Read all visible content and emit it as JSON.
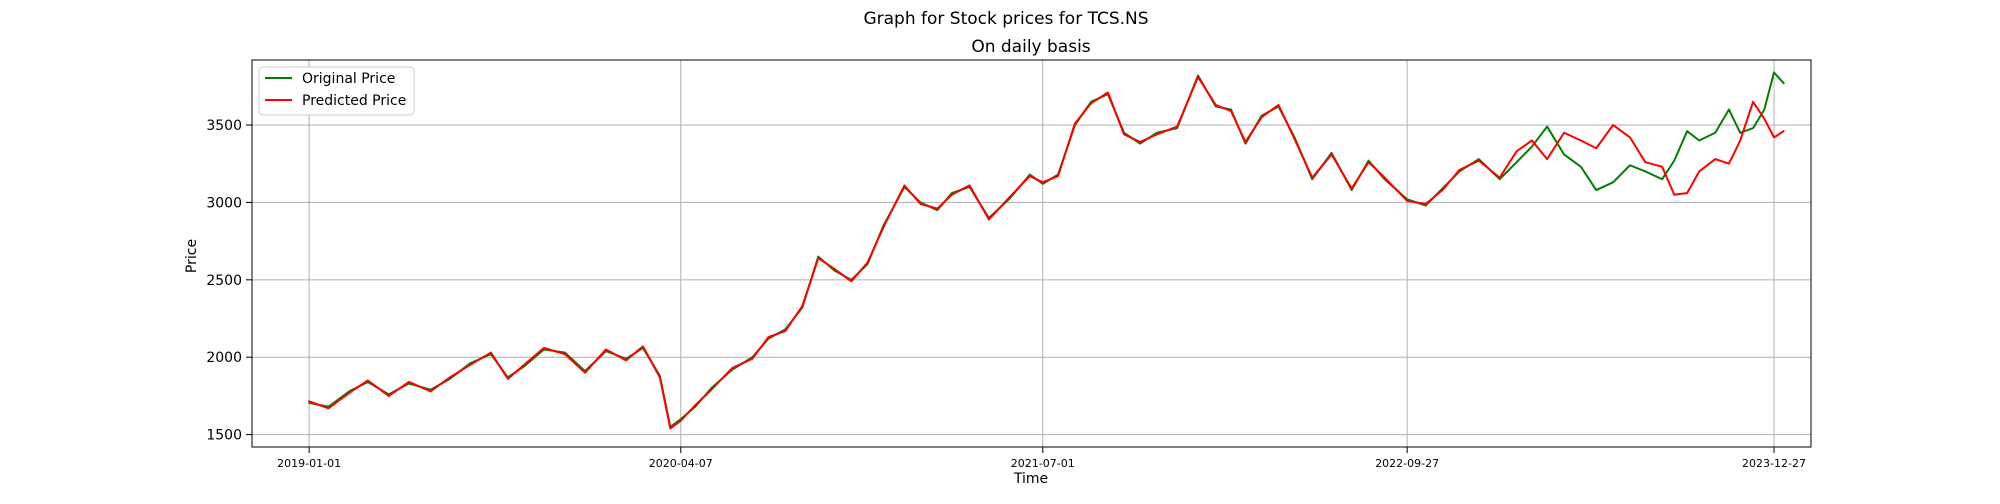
{
  "chart_data": {
    "type": "line",
    "suptitle": "Graph for Stock prices for TCS.NS",
    "title": "On daily basis",
    "xlabel": "Time",
    "ylabel": "Price",
    "x_range": [
      "2018-10-22",
      "2024-02-11"
    ],
    "ylim": [
      1420,
      3920
    ],
    "grid": true,
    "legend_position": "top-left",
    "x_ticks": [
      "2019-01-01",
      "2020-04-07",
      "2021-07-01",
      "2022-09-27",
      "2023-12-27"
    ],
    "y_ticks": [
      1500,
      2000,
      2500,
      3000,
      3500
    ],
    "series": [
      {
        "name": "Original Price",
        "color": "#008000",
        "points": [
          [
            "2019-01-01",
            1705
          ],
          [
            "2019-01-25",
            1680
          ],
          [
            "2019-02-20",
            1780
          ],
          [
            "2019-03-15",
            1840
          ],
          [
            "2019-04-10",
            1760
          ],
          [
            "2019-05-05",
            1830
          ],
          [
            "2019-06-01",
            1790
          ],
          [
            "2019-06-25",
            1860
          ],
          [
            "2019-07-20",
            1960
          ],
          [
            "2019-08-15",
            2020
          ],
          [
            "2019-09-05",
            1870
          ],
          [
            "2019-09-25",
            1940
          ],
          [
            "2019-10-20",
            2050
          ],
          [
            "2019-11-15",
            2030
          ],
          [
            "2019-12-10",
            1910
          ],
          [
            "2020-01-05",
            2040
          ],
          [
            "2020-01-30",
            1990
          ],
          [
            "2020-02-20",
            2060
          ],
          [
            "2020-03-12",
            1880
          ],
          [
            "2020-03-25",
            1550
          ],
          [
            "2020-04-07",
            1600
          ],
          [
            "2020-04-25",
            1680
          ],
          [
            "2020-05-15",
            1800
          ],
          [
            "2020-06-10",
            1920
          ],
          [
            "2020-07-05",
            2000
          ],
          [
            "2020-07-25",
            2120
          ],
          [
            "2020-08-15",
            2180
          ],
          [
            "2020-09-05",
            2320
          ],
          [
            "2020-09-25",
            2650
          ],
          [
            "2020-10-15",
            2560
          ],
          [
            "2020-11-05",
            2500
          ],
          [
            "2020-11-25",
            2600
          ],
          [
            "2020-12-15",
            2850
          ],
          [
            "2021-01-10",
            3100
          ],
          [
            "2021-01-30",
            3000
          ],
          [
            "2021-02-20",
            2950
          ],
          [
            "2021-03-10",
            3060
          ],
          [
            "2021-04-01",
            3100
          ],
          [
            "2021-04-25",
            2900
          ],
          [
            "2021-05-20",
            3020
          ],
          [
            "2021-06-15",
            3180
          ],
          [
            "2021-07-01",
            3120
          ],
          [
            "2021-07-20",
            3180
          ],
          [
            "2021-08-10",
            3500
          ],
          [
            "2021-08-30",
            3650
          ],
          [
            "2021-09-20",
            3700
          ],
          [
            "2021-10-10",
            3450
          ],
          [
            "2021-10-30",
            3380
          ],
          [
            "2021-11-20",
            3450
          ],
          [
            "2021-12-15",
            3480
          ],
          [
            "2022-01-10",
            3820
          ],
          [
            "2022-02-01",
            3620
          ],
          [
            "2022-02-20",
            3600
          ],
          [
            "2022-03-10",
            3380
          ],
          [
            "2022-03-30",
            3560
          ],
          [
            "2022-04-20",
            3620
          ],
          [
            "2022-05-10",
            3420
          ],
          [
            "2022-06-01",
            3150
          ],
          [
            "2022-06-25",
            3320
          ],
          [
            "2022-07-20",
            3080
          ],
          [
            "2022-08-10",
            3270
          ],
          [
            "2022-08-30",
            3150
          ],
          [
            "2022-09-27",
            3020
          ],
          [
            "2022-10-20",
            2980
          ],
          [
            "2022-11-10",
            3090
          ],
          [
            "2022-12-01",
            3200
          ],
          [
            "2022-12-25",
            3280
          ],
          [
            "2023-01-20",
            3150
          ],
          [
            "2023-02-10",
            3260
          ],
          [
            "2023-03-01",
            3360
          ],
          [
            "2023-03-20",
            3490
          ],
          [
            "2023-04-10",
            3310
          ],
          [
            "2023-05-01",
            3230
          ],
          [
            "2023-05-20",
            3080
          ],
          [
            "2023-06-10",
            3130
          ],
          [
            "2023-07-01",
            3240
          ],
          [
            "2023-07-20",
            3200
          ],
          [
            "2023-08-10",
            3150
          ],
          [
            "2023-08-25",
            3270
          ],
          [
            "2023-09-10",
            3460
          ],
          [
            "2023-09-25",
            3400
          ],
          [
            "2023-10-15",
            3450
          ],
          [
            "2023-11-01",
            3600
          ],
          [
            "2023-11-15",
            3450
          ],
          [
            "2023-12-01",
            3480
          ],
          [
            "2023-12-15",
            3600
          ],
          [
            "2023-12-27",
            3840
          ],
          [
            "2024-01-08",
            3770
          ]
        ]
      },
      {
        "name": "Predicted Price",
        "color": "#ff0000",
        "points": [
          [
            "2019-01-01",
            1715
          ],
          [
            "2019-01-25",
            1670
          ],
          [
            "2019-02-20",
            1770
          ],
          [
            "2019-03-15",
            1850
          ],
          [
            "2019-04-10",
            1750
          ],
          [
            "2019-05-05",
            1840
          ],
          [
            "2019-06-01",
            1780
          ],
          [
            "2019-06-25",
            1870
          ],
          [
            "2019-07-20",
            1950
          ],
          [
            "2019-08-15",
            2030
          ],
          [
            "2019-09-05",
            1860
          ],
          [
            "2019-09-25",
            1950
          ],
          [
            "2019-10-20",
            2060
          ],
          [
            "2019-11-15",
            2020
          ],
          [
            "2019-12-10",
            1900
          ],
          [
            "2020-01-05",
            2050
          ],
          [
            "2020-01-30",
            1980
          ],
          [
            "2020-02-20",
            2070
          ],
          [
            "2020-03-12",
            1870
          ],
          [
            "2020-03-25",
            1540
          ],
          [
            "2020-04-07",
            1590
          ],
          [
            "2020-04-25",
            1690
          ],
          [
            "2020-05-15",
            1790
          ],
          [
            "2020-06-10",
            1930
          ],
          [
            "2020-07-05",
            1990
          ],
          [
            "2020-07-25",
            2130
          ],
          [
            "2020-08-15",
            2170
          ],
          [
            "2020-09-05",
            2330
          ],
          [
            "2020-09-25",
            2640
          ],
          [
            "2020-10-15",
            2570
          ],
          [
            "2020-11-05",
            2490
          ],
          [
            "2020-11-25",
            2610
          ],
          [
            "2020-12-15",
            2840
          ],
          [
            "2021-01-10",
            3110
          ],
          [
            "2021-01-30",
            2990
          ],
          [
            "2021-02-20",
            2960
          ],
          [
            "2021-03-10",
            3050
          ],
          [
            "2021-04-01",
            3110
          ],
          [
            "2021-04-25",
            2890
          ],
          [
            "2021-05-20",
            3030
          ],
          [
            "2021-06-15",
            3170
          ],
          [
            "2021-07-01",
            3130
          ],
          [
            "2021-07-20",
            3170
          ],
          [
            "2021-08-10",
            3510
          ],
          [
            "2021-08-30",
            3640
          ],
          [
            "2021-09-20",
            3710
          ],
          [
            "2021-10-10",
            3440
          ],
          [
            "2021-10-30",
            3390
          ],
          [
            "2021-11-20",
            3440
          ],
          [
            "2021-12-15",
            3490
          ],
          [
            "2022-01-10",
            3810
          ],
          [
            "2022-02-01",
            3630
          ],
          [
            "2022-02-20",
            3590
          ],
          [
            "2022-03-10",
            3390
          ],
          [
            "2022-03-30",
            3550
          ],
          [
            "2022-04-20",
            3630
          ],
          [
            "2022-05-10",
            3410
          ],
          [
            "2022-06-01",
            3160
          ],
          [
            "2022-06-25",
            3310
          ],
          [
            "2022-07-20",
            3090
          ],
          [
            "2022-08-10",
            3260
          ],
          [
            "2022-08-30",
            3160
          ],
          [
            "2022-09-27",
            3010
          ],
          [
            "2022-10-20",
            2990
          ],
          [
            "2022-11-10",
            3080
          ],
          [
            "2022-12-01",
            3210
          ],
          [
            "2022-12-25",
            3270
          ],
          [
            "2023-01-20",
            3160
          ],
          [
            "2023-02-10",
            3330
          ],
          [
            "2023-03-01",
            3400
          ],
          [
            "2023-03-20",
            3280
          ],
          [
            "2023-04-10",
            3450
          ],
          [
            "2023-05-01",
            3400
          ],
          [
            "2023-05-20",
            3350
          ],
          [
            "2023-06-10",
            3500
          ],
          [
            "2023-07-01",
            3420
          ],
          [
            "2023-07-20",
            3260
          ],
          [
            "2023-08-10",
            3230
          ],
          [
            "2023-08-25",
            3050
          ],
          [
            "2023-09-10",
            3060
          ],
          [
            "2023-09-25",
            3200
          ],
          [
            "2023-10-15",
            3280
          ],
          [
            "2023-11-01",
            3250
          ],
          [
            "2023-11-15",
            3400
          ],
          [
            "2023-12-01",
            3650
          ],
          [
            "2023-12-15",
            3540
          ],
          [
            "2023-12-27",
            3420
          ],
          [
            "2024-01-08",
            3460
          ]
        ]
      }
    ]
  }
}
